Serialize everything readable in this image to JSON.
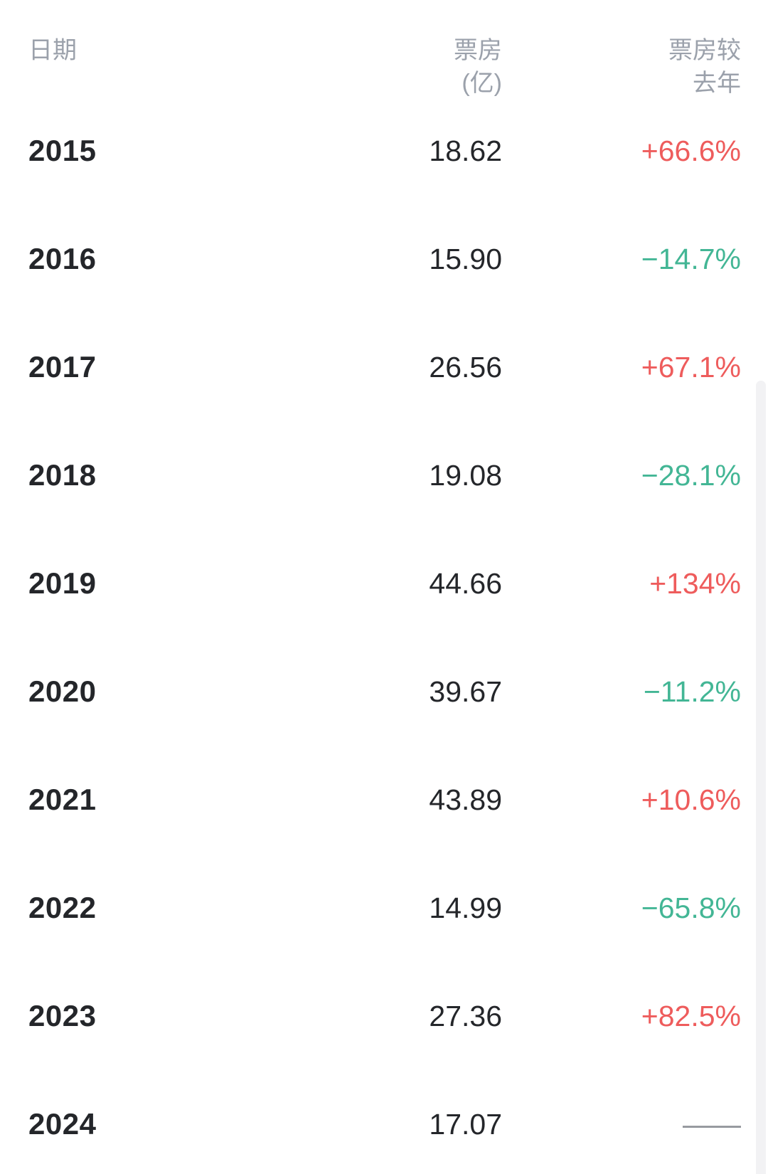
{
  "table": {
    "headers": {
      "date": "日期",
      "boxoffice_line1": "票房",
      "boxoffice_line2": "(亿)",
      "yoy_line1": "票房较",
      "yoy_line2": "去年"
    },
    "rows": [
      {
        "year": "2015",
        "boxoffice": "18.62",
        "yoy": "+66.6%",
        "trend": "up"
      },
      {
        "year": "2016",
        "boxoffice": "15.90",
        "yoy": "−14.7%",
        "trend": "down"
      },
      {
        "year": "2017",
        "boxoffice": "26.56",
        "yoy": "+67.1%",
        "trend": "up"
      },
      {
        "year": "2018",
        "boxoffice": "19.08",
        "yoy": "−28.1%",
        "trend": "down"
      },
      {
        "year": "2019",
        "boxoffice": "44.66",
        "yoy": "+134%",
        "trend": "up"
      },
      {
        "year": "2020",
        "boxoffice": "39.67",
        "yoy": "−11.2%",
        "trend": "down"
      },
      {
        "year": "2021",
        "boxoffice": "43.89",
        "yoy": "+10.6%",
        "trend": "up"
      },
      {
        "year": "2022",
        "boxoffice": "14.99",
        "yoy": "−65.8%",
        "trend": "down"
      },
      {
        "year": "2023",
        "boxoffice": "27.36",
        "yoy": "+82.5%",
        "trend": "up"
      },
      {
        "year": "2024",
        "boxoffice": "17.07",
        "yoy": "——",
        "trend": "none"
      }
    ]
  },
  "colors": {
    "up": "#ee5c5c",
    "down": "#43b695",
    "header": "#9ba1ab",
    "text": "#24262a",
    "dash": "#8f9399",
    "scrollbar": "#f2f2f4"
  }
}
